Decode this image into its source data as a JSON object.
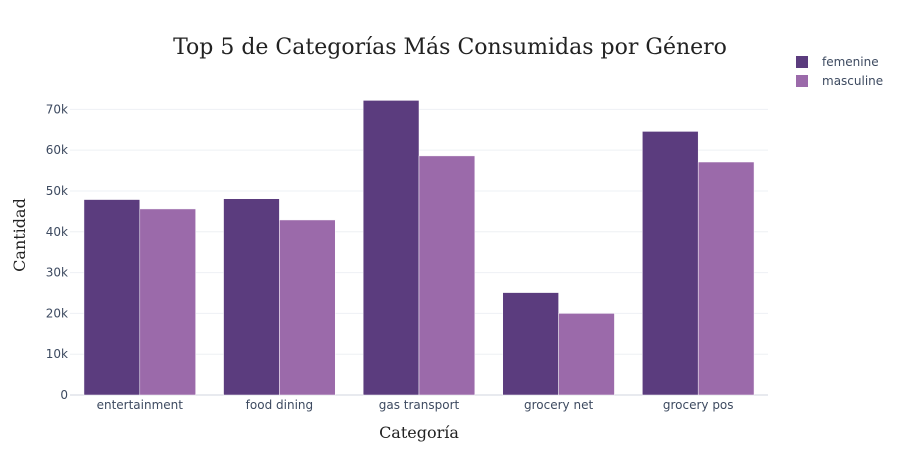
{
  "chart_data": {
    "type": "bar",
    "title": "Top 5 de Categorías Más Consumidas por Género",
    "xlabel": "Categoría",
    "ylabel": "Cantidad",
    "categories": [
      "entertainment",
      "food dining",
      "gas transport",
      "grocery net",
      "grocery pos"
    ],
    "series": [
      {
        "name": "femenine",
        "color": "#5b3c7e",
        "values": [
          47900,
          48100,
          72200,
          25100,
          64600
        ]
      },
      {
        "name": "masculine",
        "color": "#9b6aaa",
        "values": [
          45600,
          42900,
          58600,
          20000,
          57100
        ]
      }
    ],
    "ylim": [
      0,
      77200
    ],
    "yticks": [
      0,
      10000,
      20000,
      30000,
      40000,
      50000,
      60000,
      70000
    ],
    "ytick_labels": [
      "0",
      "10k",
      "20k",
      "30k",
      "40k",
      "50k",
      "60k",
      "70k"
    ],
    "grid": true,
    "legend_position": "top-right"
  }
}
